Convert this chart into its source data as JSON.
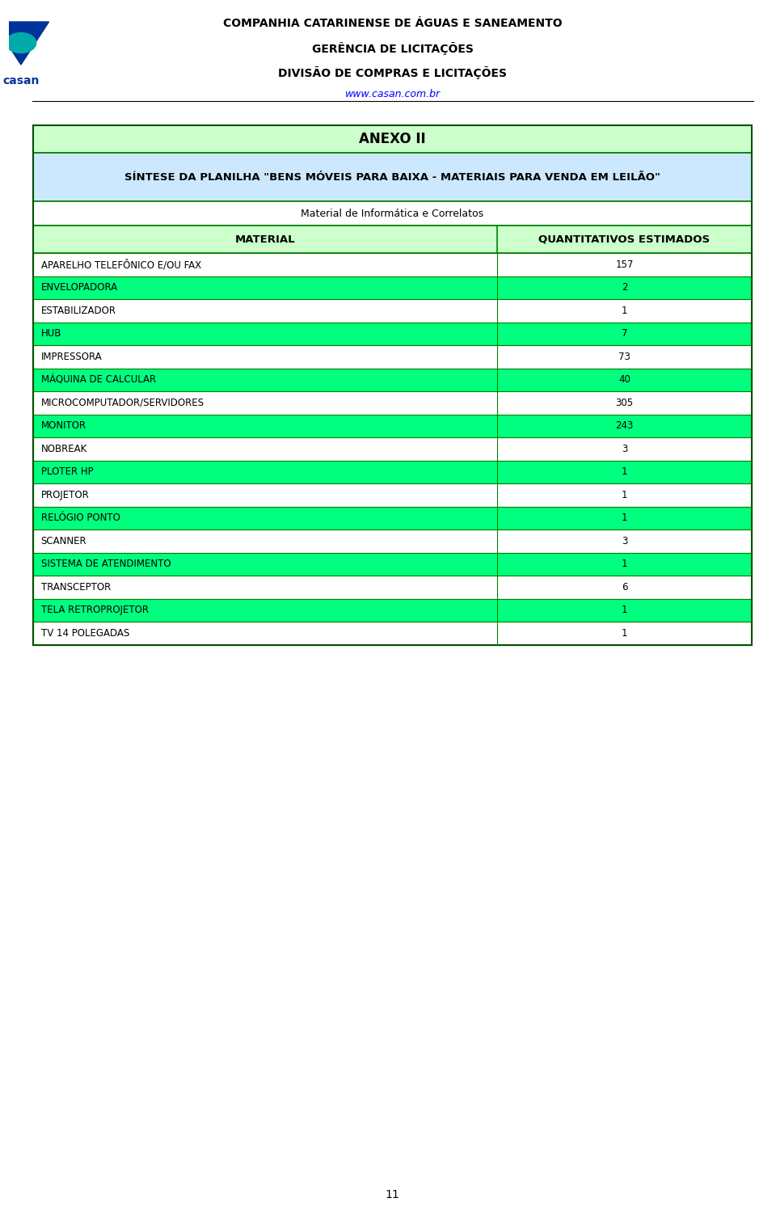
{
  "header_line1": "COMPANHIA CATARINENSE DE ÁGUAS E SANEAMENTO",
  "header_line2": "GERÊNCIA DE LICITAÇÕES",
  "header_line3": "DIVISÃO DE COMPRAS E LICITAÇÕES",
  "header_url": "www.casan.com.br",
  "annex_title": "ANEXO II",
  "subtitle": "SÍNTESE DA PLANILHA \"BENS MÓVEIS PARA BAIXA - MATERIAIS PARA VENDA EM LEILÃO\"",
  "category": "Material de Informática e Correlatos",
  "col1_header": "MATERIAL",
  "col2_header": "QUANTITATIVOS ESTIMADOS",
  "rows": [
    {
      "material": "APARELHO TELEFÔNICO E/OU FAX",
      "qty": "157",
      "highlight": false
    },
    {
      "material": "ENVELOPADORA",
      "qty": "2",
      "highlight": true
    },
    {
      "material": "ESTABILIZADOR",
      "qty": "1",
      "highlight": false
    },
    {
      "material": "HUB",
      "qty": "7",
      "highlight": true
    },
    {
      "material": "IMPRESSORA",
      "qty": "73",
      "highlight": false
    },
    {
      "material": "MÁQUINA DE CALCULAR",
      "qty": "40",
      "highlight": true
    },
    {
      "material": "MICROCOMPUTADOR/SERVIDORES",
      "qty": "305",
      "highlight": false
    },
    {
      "material": "MONITOR",
      "qty": "243",
      "highlight": true
    },
    {
      "material": "NOBREAK",
      "qty": "3",
      "highlight": false
    },
    {
      "material": "PLOTER HP",
      "qty": "1",
      "highlight": true
    },
    {
      "material": "PROJETOR",
      "qty": "1",
      "highlight": false
    },
    {
      "material": "RELÓGIO PONTO",
      "qty": "1",
      "highlight": true
    },
    {
      "material": "SCANNER",
      "qty": "3",
      "highlight": false
    },
    {
      "material": "SISTEMA DE ATENDIMENTO",
      "qty": "1",
      "highlight": true
    },
    {
      "material": "TRANSCEPTOR",
      "qty": "6",
      "highlight": false
    },
    {
      "material": "TELA RETROPROJETOR",
      "qty": "1",
      "highlight": true
    },
    {
      "material": "TV 14 POLEGADAS",
      "qty": "1",
      "highlight": false
    }
  ],
  "color_green_light": "#ccffcc",
  "color_green_header": "#ccffcc",
  "color_green_bright": "#00ff7f",
  "color_white": "#ffffff",
  "color_border": "#008000",
  "color_annex_bg": "#ccffcc",
  "color_subtitle_bg": "#aaddff",
  "color_category_bg": "#ffffff",
  "page_number": "11",
  "bg_color": "#ffffff"
}
